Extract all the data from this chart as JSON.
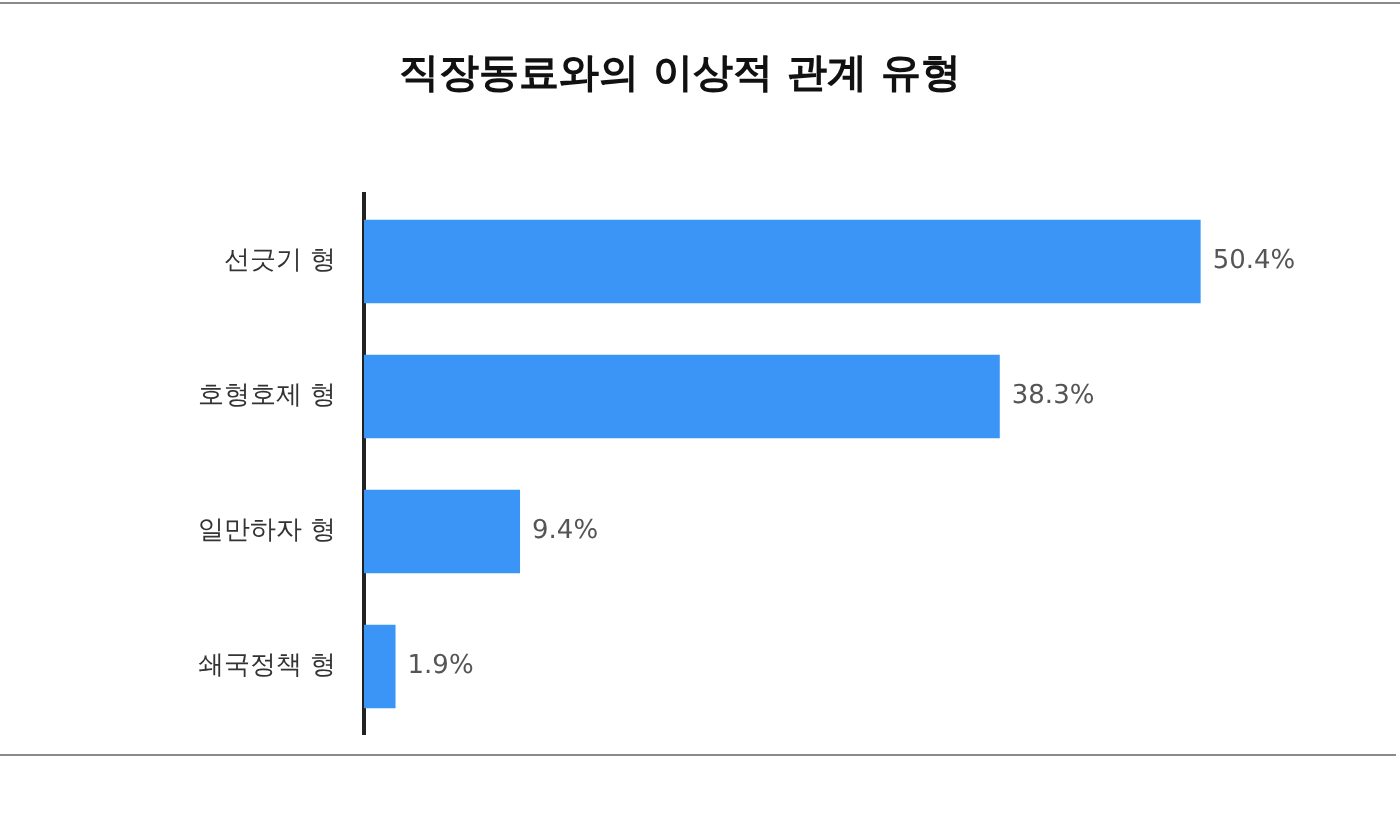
{
  "chart_data": {
    "type": "bar",
    "orientation": "horizontal",
    "title": "직장동료와의 이상적 관계 유형",
    "categories": [
      "선긋기 형",
      "호형호제 형",
      "일만하자 형",
      "쇄국정책 형"
    ],
    "values": [
      50.4,
      38.3,
      9.4,
      1.9
    ],
    "value_labels": [
      "50.4%",
      "38.3%",
      "9.4%",
      "1.9%"
    ],
    "color": "#3a95f7",
    "grid": false,
    "legend": false,
    "tick_labels": "y"
  }
}
